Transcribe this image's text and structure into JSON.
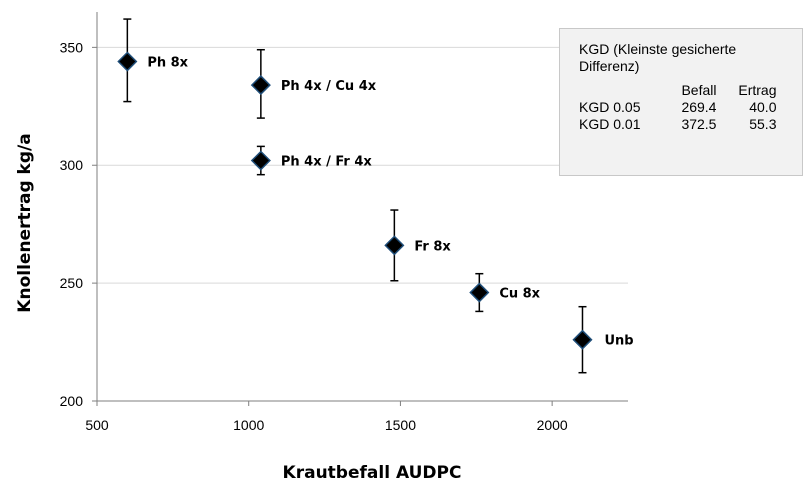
{
  "chart_data": {
    "type": "scatter",
    "xlabel": "Krautbefall AUDPC",
    "ylabel": "Knollenertrag kg/a",
    "xlim": [
      500,
      2250
    ],
    "ylim": [
      200,
      365
    ],
    "xticks": [
      "500",
      "1000",
      "1500",
      "2000"
    ],
    "yticks": [
      "200",
      "250",
      "300",
      "350"
    ],
    "grid": "horizontal",
    "points": [
      {
        "label": "Ph 8x",
        "x": 600,
        "y": 344,
        "err_low": 327,
        "err_high": 362
      },
      {
        "label": "Ph 4x / Cu 4x",
        "x": 1040,
        "y": 334,
        "err_low": 320,
        "err_high": 349
      },
      {
        "label": "Ph 4x / Fr 4x",
        "x": 1040,
        "y": 302,
        "err_low": 296,
        "err_high": 308
      },
      {
        "label": "Fr 8x",
        "x": 1480,
        "y": 266,
        "err_low": 251,
        "err_high": 281
      },
      {
        "label": "Cu 8x",
        "x": 1760,
        "y": 246,
        "err_low": 238,
        "err_high": 254
      },
      {
        "label": "Unb",
        "x": 2100,
        "y": 226,
        "err_low": 212,
        "err_high": 240
      }
    ],
    "marker_color": "#000000",
    "marker_edge_color": "#1f4e79"
  },
  "kgd_box": {
    "title": "KGD  (Kleinste gesicherte Differenz)",
    "columns": [
      "Befall",
      "Ertrag"
    ],
    "rows": [
      {
        "name": "KGD 0.05",
        "befall": "269.4",
        "ertrag": "40.0"
      },
      {
        "name": "KGD 0.01",
        "befall": "372.5",
        "ertrag": "55.3"
      }
    ]
  }
}
